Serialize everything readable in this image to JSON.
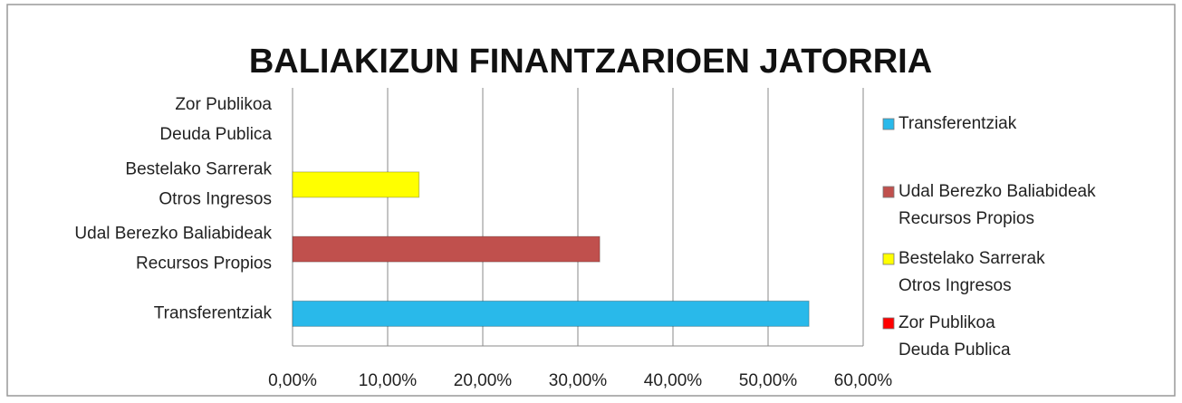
{
  "chart_data": {
    "type": "hbar",
    "title": "BALIAKIZUN FINANTZARIOEN JATORRIA",
    "categories": [
      [
        "Transferentziak"
      ],
      [
        "Udal Berezko Baliabideak",
        "Recursos Propios"
      ],
      [
        "Bestelako Sarrerak",
        "Otros Ingresos"
      ],
      [
        "Zor Publikoa",
        "Deuda Publica"
      ]
    ],
    "values": [
      54.3,
      32.3,
      13.3,
      0
    ],
    "colors": [
      "#29b9ea",
      "#c0504d",
      "#ffff00",
      "#ff0000"
    ],
    "xlim": [
      0,
      60
    ],
    "xticks": [
      {
        "value": 0,
        "label": "0,00%"
      },
      {
        "value": 10,
        "label": "10,00%"
      },
      {
        "value": 20,
        "label": "20,00%"
      },
      {
        "value": 30,
        "label": "30,00%"
      },
      {
        "value": 40,
        "label": "40,00%"
      },
      {
        "value": 50,
        "label": "50,00%"
      },
      {
        "value": 60,
        "label": "60,00%"
      }
    ],
    "grid": true,
    "legend": "right"
  }
}
